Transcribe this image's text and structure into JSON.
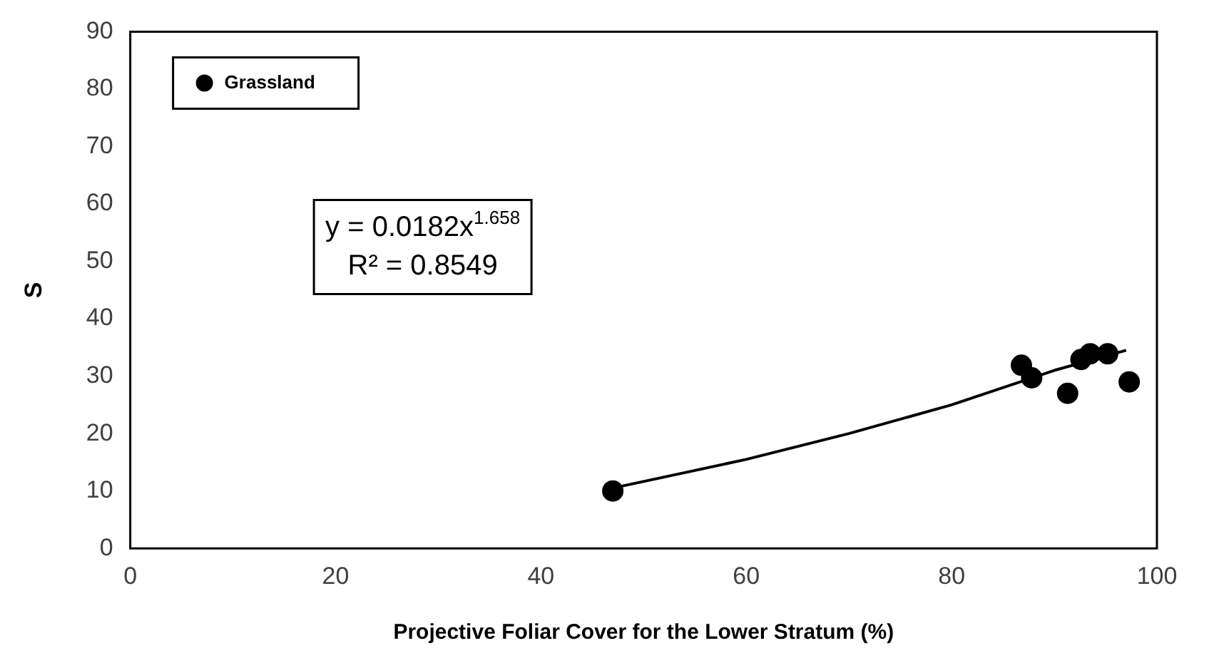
{
  "chart_data": {
    "type": "scatter",
    "xlabel": "Projective Foliar Cover for the Lower Stratum (%)",
    "ylabel": "S",
    "series": [
      {
        "name": "Grassland",
        "type": "scatter",
        "marker": "circle",
        "color": "#000000",
        "x": [
          47,
          86.8,
          87.8,
          91.3,
          92.6,
          93.5,
          95.2,
          97.3
        ],
        "values": [
          10,
          31.9,
          29.7,
          27,
          32.9,
          33.9,
          33.9,
          29
        ]
      },
      {
        "type": "line",
        "marker": "none",
        "color": "#000000",
        "x": [
          47,
          60,
          70,
          80,
          90,
          97
        ],
        "values": [
          10.5,
          15.5,
          20,
          25,
          31,
          34.5
        ]
      }
    ],
    "xlim": [
      0,
      100
    ],
    "xticks": [
      0,
      20,
      40,
      60,
      80,
      100
    ],
    "ylim": [
      0,
      90
    ],
    "yticks": [
      0,
      10,
      20,
      30,
      40,
      50,
      60,
      70,
      80,
      90
    ],
    "grid": false,
    "legend": "top left",
    "annotations": [
      "y = 0.0182x$^{1.658}$",
      "R² = 0.8549"
    ]
  }
}
